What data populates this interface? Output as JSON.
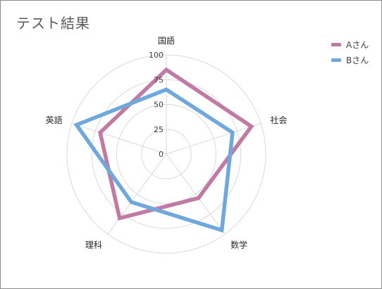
{
  "chart_data": {
    "type": "radar",
    "title": "テスト結果",
    "categories": [
      "国語",
      "社会",
      "数学",
      "理科",
      "英語"
    ],
    "ticks": [
      "0",
      "25",
      "50",
      "75",
      "100"
    ],
    "rlim": [
      0,
      100
    ],
    "grid": "circular",
    "legend_position": "top-right",
    "series": [
      {
        "name": "Aさん",
        "values": [
          85,
          90,
          55,
          80,
          70
        ],
        "color": "#c07aa3"
      },
      {
        "name": "Bさん",
        "values": [
          65,
          70,
          95,
          60,
          95
        ],
        "color": "#6fa8dc"
      }
    ]
  }
}
